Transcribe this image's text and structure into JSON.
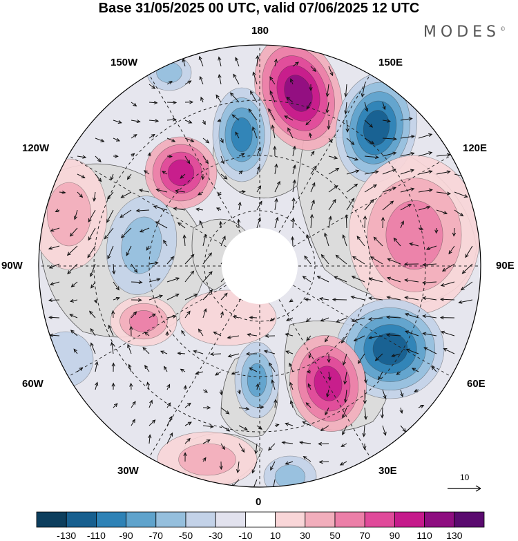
{
  "title": "Base 31/05/2025 00 UTC, valid 07/06/2025 12 UTC",
  "brand": "MODES",
  "brand_mark": "©",
  "longitude_labels": {
    "top": "180",
    "bottom": "0",
    "left": "90W",
    "right": "90E",
    "upper_left_1": "150W",
    "upper_left_2": "120W",
    "upper_right_1": "150E",
    "upper_right_2": "120E",
    "lower_left_1": "60W",
    "lower_left_2": "30W",
    "lower_right_1": "60E",
    "lower_right_2": "30E"
  },
  "reference_vector_label": "10",
  "colorbar": {
    "colors": [
      "#0c3e5d",
      "#175f8f",
      "#2e82b6",
      "#5fa3cc",
      "#95bfdd",
      "#c3d2e8",
      "#e2e2ee",
      "#ffffff",
      "#f9d6d8",
      "#f2aebc",
      "#ec7fa8",
      "#e04a9a",
      "#c51a8b",
      "#8e0e80",
      "#5a0a6f"
    ],
    "tick_labels": [
      "-130",
      "-110",
      "-90",
      "-70",
      "-50",
      "-30",
      "-10",
      "10",
      "30",
      "50",
      "70",
      "90",
      "110",
      "130"
    ]
  },
  "map_colors": {
    "land": "#dcdcdc",
    "coast": "#555555",
    "graticule": "#222222",
    "arrow": "#111111"
  }
}
